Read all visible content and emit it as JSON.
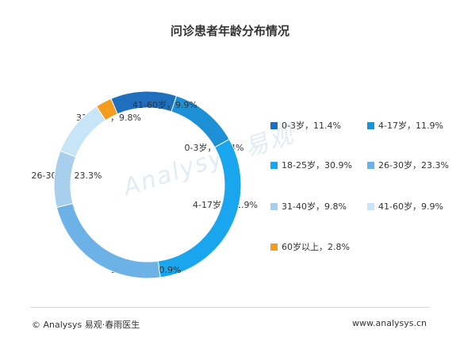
{
  "title": "问诊患者年龄分布情况",
  "chart_data": {
    "type": "pie",
    "title": "问诊患者年龄分布情况",
    "series": [
      {
        "name": "0-3岁",
        "value": 11.4,
        "label": "0-3岁，11.4%",
        "color": "#1F6FBF"
      },
      {
        "name": "4-17岁",
        "value": 11.9,
        "label": "4-17岁，11.9%",
        "color": "#1E90D6"
      },
      {
        "name": "18-25岁",
        "value": 30.9,
        "label": "18-25岁，30.9%",
        "color": "#1AA6EE"
      },
      {
        "name": "26-30岁",
        "value": 23.3,
        "label": "26-30岁，23.3%",
        "color": "#6CB2E6"
      },
      {
        "name": "31-40岁",
        "value": 9.8,
        "label": "31-40岁，9.8%",
        "color": "#A9CFEE"
      },
      {
        "name": "41-60岁",
        "value": 9.9,
        "label": "41-60岁，9.9%",
        "color": "#C8E5F7"
      },
      {
        "name": "60岁以上",
        "value": 2.8,
        "label": "60岁以上，2.8%",
        "color": "#F39C1E"
      }
    ],
    "legend": "right",
    "start_angle_deg": 337,
    "clockwise": true
  },
  "watermark": "Analysys 易观",
  "footer": {
    "left": "© Analysys 易观·春雨医生",
    "right": "www.analysys.cn"
  }
}
